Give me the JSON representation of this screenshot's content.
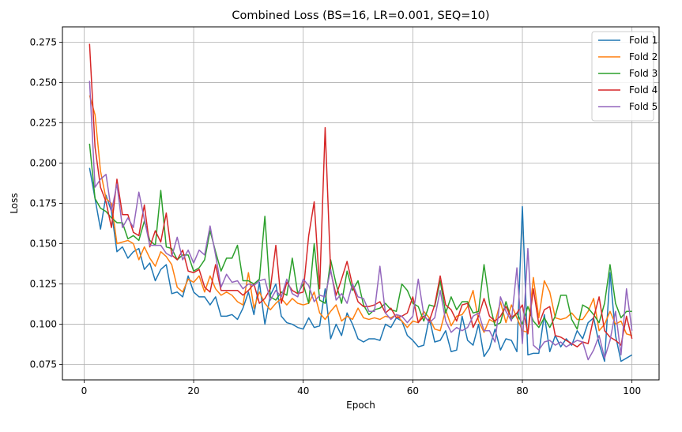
{
  "chart_data": {
    "type": "line",
    "title": "Combined Loss (BS=16, LR=0.001, SEQ=10)",
    "xlabel": "Epoch",
    "ylabel": "Loss",
    "xlim": [
      -3.95,
      104.95
    ],
    "ylim": [
      0.0655,
      0.2845
    ],
    "xticks": [
      0,
      20,
      40,
      60,
      80,
      100
    ],
    "yticks": [
      0.075,
      0.1,
      0.125,
      0.15,
      0.175,
      0.2,
      0.225,
      0.25,
      0.275
    ],
    "ytick_labels": [
      "0.075",
      "0.100",
      "0.125",
      "0.150",
      "0.175",
      "0.200",
      "0.225",
      "0.250",
      "0.275"
    ],
    "grid": true,
    "legend_position": "top-right",
    "series": [
      {
        "name": "Fold 1",
        "color": "#1f77b4",
        "values": [
          0.197,
          0.178,
          0.159,
          0.18,
          0.17,
          0.145,
          0.148,
          0.141,
          0.145,
          0.147,
          0.134,
          0.138,
          0.127,
          0.134,
          0.137,
          0.119,
          0.12,
          0.117,
          0.13,
          0.12,
          0.117,
          0.117,
          0.112,
          0.117,
          0.105,
          0.105,
          0.106,
          0.103,
          0.11,
          0.12,
          0.106,
          0.126,
          0.1,
          0.118,
          0.125,
          0.105,
          0.101,
          0.1,
          0.098,
          0.097,
          0.104,
          0.098,
          0.099,
          0.122,
          0.091,
          0.1,
          0.093,
          0.107,
          0.1,
          0.091,
          0.089,
          0.091,
          0.091,
          0.09,
          0.1,
          0.098,
          0.104,
          0.102,
          0.093,
          0.09,
          0.086,
          0.087,
          0.104,
          0.089,
          0.09,
          0.096,
          0.083,
          0.084,
          0.105,
          0.09,
          0.087,
          0.1,
          0.08,
          0.085,
          0.097,
          0.084,
          0.091,
          0.09,
          0.083,
          0.173,
          0.081,
          0.082,
          0.082,
          0.106,
          0.083,
          0.093,
          0.086,
          0.091,
          0.087,
          0.096,
          0.091,
          0.101,
          0.104,
          0.088,
          0.077,
          0.132,
          0.093,
          0.077,
          0.079,
          0.081
        ]
      },
      {
        "name": "Fold 2",
        "color": "#ff7f0e",
        "values": [
          0.242,
          0.23,
          0.195,
          0.178,
          0.175,
          0.15,
          0.151,
          0.152,
          0.15,
          0.14,
          0.148,
          0.141,
          0.136,
          0.145,
          0.142,
          0.137,
          0.123,
          0.12,
          0.128,
          0.126,
          0.13,
          0.12,
          0.13,
          0.122,
          0.118,
          0.12,
          0.118,
          0.114,
          0.112,
          0.132,
          0.11,
          0.12,
          0.113,
          0.109,
          0.113,
          0.116,
          0.112,
          0.116,
          0.113,
          0.112,
          0.113,
          0.12,
          0.107,
          0.103,
          0.108,
          0.112,
          0.102,
          0.105,
          0.103,
          0.11,
          0.104,
          0.103,
          0.104,
          0.103,
          0.105,
          0.104,
          0.106,
          0.102,
          0.098,
          0.102,
          0.101,
          0.108,
          0.104,
          0.097,
          0.096,
          0.109,
          0.099,
          0.105,
          0.106,
          0.111,
          0.121,
          0.102,
          0.095,
          0.103,
          0.101,
          0.114,
          0.101,
          0.112,
          0.104,
          0.096,
          0.095,
          0.129,
          0.104,
          0.127,
          0.12,
          0.104,
          0.103,
          0.104,
          0.107,
          0.103,
          0.103,
          0.108,
          0.116,
          0.096,
          0.1,
          0.108,
          0.1,
          0.102,
          0.094,
          0.093
        ]
      },
      {
        "name": "Fold 3",
        "color": "#2ca02c",
        "values": [
          0.212,
          0.178,
          0.172,
          0.17,
          0.166,
          0.163,
          0.163,
          0.153,
          0.155,
          0.152,
          0.164,
          0.152,
          0.149,
          0.183,
          0.148,
          0.147,
          0.14,
          0.143,
          0.143,
          0.133,
          0.135,
          0.14,
          0.158,
          0.145,
          0.133,
          0.141,
          0.141,
          0.149,
          0.127,
          0.127,
          0.125,
          0.128,
          0.167,
          0.117,
          0.115,
          0.12,
          0.118,
          0.141,
          0.119,
          0.125,
          0.113,
          0.15,
          0.115,
          0.113,
          0.14,
          0.125,
          0.113,
          0.133,
          0.121,
          0.127,
          0.112,
          0.106,
          0.109,
          0.11,
          0.113,
          0.109,
          0.108,
          0.125,
          0.121,
          0.113,
          0.111,
          0.102,
          0.112,
          0.111,
          0.127,
          0.107,
          0.117,
          0.109,
          0.114,
          0.114,
          0.107,
          0.108,
          0.137,
          0.113,
          0.099,
          0.101,
          0.114,
          0.103,
          0.107,
          0.1,
          0.111,
          0.102,
          0.098,
          0.104,
          0.098,
          0.105,
          0.118,
          0.118,
          0.103,
          0.097,
          0.112,
          0.11,
          0.106,
          0.101,
          0.113,
          0.137,
          0.113,
          0.104,
          0.108,
          0.108
        ]
      },
      {
        "name": "Fold 4",
        "color": "#d62728",
        "values": [
          0.274,
          0.21,
          0.185,
          0.176,
          0.16,
          0.19,
          0.168,
          0.168,
          0.157,
          0.155,
          0.174,
          0.148,
          0.158,
          0.151,
          0.169,
          0.143,
          0.14,
          0.146,
          0.133,
          0.132,
          0.134,
          0.123,
          0.12,
          0.137,
          0.121,
          0.121,
          0.121,
          0.121,
          0.118,
          0.121,
          0.125,
          0.113,
          0.116,
          0.122,
          0.149,
          0.113,
          0.126,
          0.121,
          0.119,
          0.12,
          0.155,
          0.176,
          0.122,
          0.222,
          0.133,
          0.118,
          0.128,
          0.139,
          0.124,
          0.114,
          0.111,
          0.111,
          0.112,
          0.114,
          0.107,
          0.11,
          0.104,
          0.105,
          0.107,
          0.117,
          0.101,
          0.105,
          0.102,
          0.112,
          0.13,
          0.112,
          0.109,
          0.102,
          0.112,
          0.113,
          0.098,
          0.105,
          0.116,
          0.105,
          0.102,
          0.105,
          0.111,
          0.104,
          0.107,
          0.112,
          0.094,
          0.122,
          0.1,
          0.109,
          0.111,
          0.093,
          0.092,
          0.09,
          0.088,
          0.086,
          0.089,
          0.088,
          0.104,
          0.117,
          0.096,
          0.092,
          0.09,
          0.087,
          0.105,
          0.091
        ]
      },
      {
        "name": "Fold 5",
        "color": "#9467bd",
        "values": [
          0.251,
          0.185,
          0.19,
          0.193,
          0.17,
          0.187,
          0.16,
          0.166,
          0.16,
          0.182,
          0.165,
          0.149,
          0.149,
          0.149,
          0.144,
          0.142,
          0.154,
          0.14,
          0.146,
          0.138,
          0.146,
          0.143,
          0.161,
          0.143,
          0.123,
          0.131,
          0.126,
          0.127,
          0.122,
          0.125,
          0.124,
          0.127,
          0.128,
          0.115,
          0.121,
          0.117,
          0.128,
          0.119,
          0.117,
          0.128,
          0.124,
          0.114,
          0.118,
          0.117,
          0.134,
          0.115,
          0.119,
          0.113,
          0.125,
          0.117,
          0.116,
          0.108,
          0.108,
          0.136,
          0.107,
          0.103,
          0.106,
          0.105,
          0.101,
          0.105,
          0.128,
          0.106,
          0.101,
          0.104,
          0.121,
          0.102,
          0.095,
          0.098,
          0.096,
          0.098,
          0.105,
          0.107,
          0.096,
          0.096,
          0.089,
          0.117,
          0.108,
          0.102,
          0.135,
          0.088,
          0.147,
          0.087,
          0.084,
          0.089,
          0.09,
          0.087,
          0.089,
          0.086,
          0.088,
          0.09,
          0.089,
          0.078,
          0.084,
          0.093,
          0.079,
          0.09,
          0.108,
          0.081,
          0.122,
          0.096
        ]
      }
    ]
  }
}
